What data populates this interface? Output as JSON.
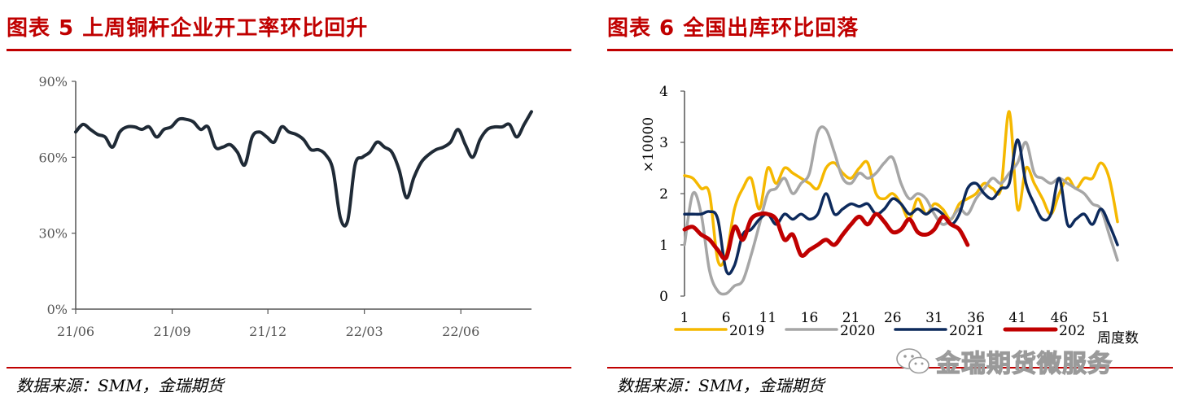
{
  "left": {
    "title": "图表 5  上周铜杆企业开工率环比回升",
    "source": "数据来源：SMM，金瑞期货",
    "chart_data": {
      "type": "line",
      "ylim": [
        0,
        90
      ],
      "yticks": [
        "0%",
        "30%",
        "60%",
        "90%"
      ],
      "ytick_values": [
        0,
        30,
        60,
        90
      ],
      "xticks": [
        "21/06",
        "21/09",
        "21/12",
        "22/03",
        "22/06"
      ],
      "xlim_index": [
        0,
        60
      ],
      "xtick_index": [
        0,
        12.7,
        25.3,
        38,
        50.7
      ],
      "series": [
        {
          "color": "#1f2a36",
          "values": [
            70,
            73,
            71,
            69,
            68,
            64,
            70,
            72,
            72,
            71,
            72,
            68,
            71,
            72,
            75,
            75,
            74,
            71,
            72,
            64,
            64,
            65,
            62,
            57,
            68,
            70,
            68,
            66,
            72,
            70,
            69,
            67,
            63,
            63,
            61,
            55,
            36,
            35,
            57,
            60,
            62,
            66,
            64,
            62,
            55,
            44,
            52,
            58,
            61,
            63,
            64,
            66,
            71,
            65,
            60,
            67,
            71,
            72,
            72,
            73,
            68,
            73,
            78
          ]
        }
      ]
    }
  },
  "right": {
    "title": "图表 6  全国出库环比回落",
    "source": "数据来源：SMM，金瑞期货",
    "chart_data": {
      "type": "line",
      "ylabel": "×10000",
      "ylim": [
        0,
        4
      ],
      "yticks": [
        "0",
        "1",
        "2",
        "3",
        "4"
      ],
      "ytick_values": [
        0,
        1,
        2,
        3,
        4
      ],
      "xlim": [
        1,
        53
      ],
      "xticks": [
        "1",
        "6",
        "11",
        "16",
        "21",
        "26",
        "31",
        "36",
        "41",
        "46",
        "51"
      ],
      "xtick_values": [
        1,
        6,
        11,
        16,
        21,
        26,
        31,
        36,
        41,
        46,
        51
      ],
      "xlabel": "周度数",
      "legend_position": "bottom",
      "series": [
        {
          "name": "2019",
          "color": "#f5b800",
          "x": [
            1,
            2,
            3,
            4,
            5,
            6,
            7,
            8,
            9,
            10,
            11,
            12,
            13,
            14,
            15,
            16,
            17,
            18,
            19,
            20,
            21,
            22,
            23,
            24,
            25,
            26,
            27,
            28,
            29,
            30,
            31,
            32,
            33,
            34,
            35,
            36,
            37,
            38,
            39,
            40,
            41,
            42,
            43,
            44,
            45,
            46,
            47,
            48,
            49,
            50,
            51,
            52,
            53
          ],
          "values": [
            2.35,
            2.3,
            2.1,
            2.0,
            0.7,
            0.8,
            1.7,
            2.1,
            2.3,
            1.7,
            2.5,
            2.2,
            2.5,
            2.4,
            2.3,
            2.2,
            2.1,
            2.5,
            2.6,
            2.4,
            2.3,
            2.5,
            2.6,
            2.0,
            1.9,
            2.0,
            1.8,
            1.5,
            1.9,
            1.6,
            1.8,
            1.7,
            1.5,
            1.8,
            1.9,
            2.0,
            2.2,
            2.1,
            2.1,
            3.6,
            1.7,
            2.5,
            2.2,
            1.9,
            1.6,
            2.0,
            2.3,
            2.1,
            2.3,
            2.3,
            2.6,
            2.3,
            1.45
          ]
        },
        {
          "name": "2020",
          "color": "#a6a6a6",
          "x": [
            1,
            2,
            3,
            4,
            5,
            6,
            7,
            8,
            9,
            10,
            11,
            12,
            13,
            14,
            15,
            16,
            17,
            18,
            19,
            20,
            21,
            22,
            23,
            24,
            25,
            26,
            27,
            28,
            29,
            30,
            31,
            32,
            33,
            34,
            35,
            36,
            37,
            38,
            39,
            40,
            41,
            42,
            43,
            44,
            45,
            46,
            47,
            48,
            49,
            50,
            51,
            52,
            53
          ],
          "values": [
            1.0,
            2.0,
            1.6,
            0.5,
            0.1,
            0.05,
            0.2,
            0.3,
            0.8,
            1.4,
            2.0,
            2.1,
            2.3,
            2.0,
            2.2,
            2.4,
            3.2,
            3.25,
            2.8,
            2.3,
            2.2,
            2.4,
            2.3,
            2.4,
            2.6,
            2.7,
            2.2,
            1.9,
            2.0,
            1.9,
            1.6,
            1.4,
            1.5,
            1.7,
            1.6,
            1.9,
            2.1,
            2.3,
            2.2,
            2.4,
            2.6,
            3.0,
            2.4,
            2.3,
            2.2,
            2.3,
            2.2,
            2.1,
            2.0,
            1.8,
            1.7,
            1.2,
            0.7
          ]
        },
        {
          "name": "2021",
          "color": "#0d2a5c",
          "x": [
            1,
            2,
            3,
            4,
            5,
            6,
            7,
            8,
            9,
            10,
            11,
            12,
            13,
            14,
            15,
            16,
            17,
            18,
            19,
            20,
            21,
            22,
            23,
            24,
            25,
            26,
            27,
            28,
            29,
            30,
            31,
            32,
            33,
            34,
            35,
            36,
            37,
            38,
            39,
            40,
            41,
            42,
            43,
            44,
            45,
            46,
            47,
            48,
            49,
            50,
            51,
            52,
            53
          ],
          "values": [
            1.6,
            1.6,
            1.6,
            1.65,
            1.5,
            0.5,
            0.6,
            1.2,
            1.3,
            1.5,
            1.6,
            1.4,
            1.6,
            1.5,
            1.6,
            1.5,
            1.6,
            2.0,
            1.6,
            1.7,
            1.8,
            1.75,
            1.8,
            1.6,
            1.7,
            1.9,
            1.8,
            1.6,
            1.7,
            1.6,
            1.7,
            1.6,
            1.4,
            1.6,
            2.1,
            2.2,
            2.0,
            1.9,
            2.1,
            2.2,
            3.05,
            2.2,
            1.8,
            1.5,
            1.6,
            2.3,
            1.4,
            1.5,
            1.6,
            1.4,
            1.7,
            1.4,
            1.0
          ]
        },
        {
          "name": "202",
          "color": "#c00000",
          "x": [
            1,
            2,
            3,
            4,
            5,
            6,
            7,
            8,
            9,
            10,
            11,
            12,
            13,
            14,
            15,
            16,
            17,
            18,
            19,
            20,
            21,
            22,
            23,
            24,
            25,
            26,
            27,
            28,
            29,
            30,
            31,
            32,
            33,
            34,
            35
          ],
          "values": [
            1.3,
            1.35,
            1.2,
            1.1,
            0.9,
            0.75,
            1.35,
            1.1,
            1.5,
            1.6,
            1.6,
            1.5,
            1.1,
            1.2,
            0.8,
            0.9,
            1.0,
            1.1,
            1.0,
            1.2,
            1.4,
            1.55,
            1.4,
            1.6,
            1.45,
            1.25,
            1.3,
            1.5,
            1.25,
            1.2,
            1.3,
            1.55,
            1.4,
            1.3,
            1.0
          ]
        }
      ]
    }
  },
  "watermark": {
    "text": "金瑞期货微服务",
    "icon": "wechat-icon"
  }
}
